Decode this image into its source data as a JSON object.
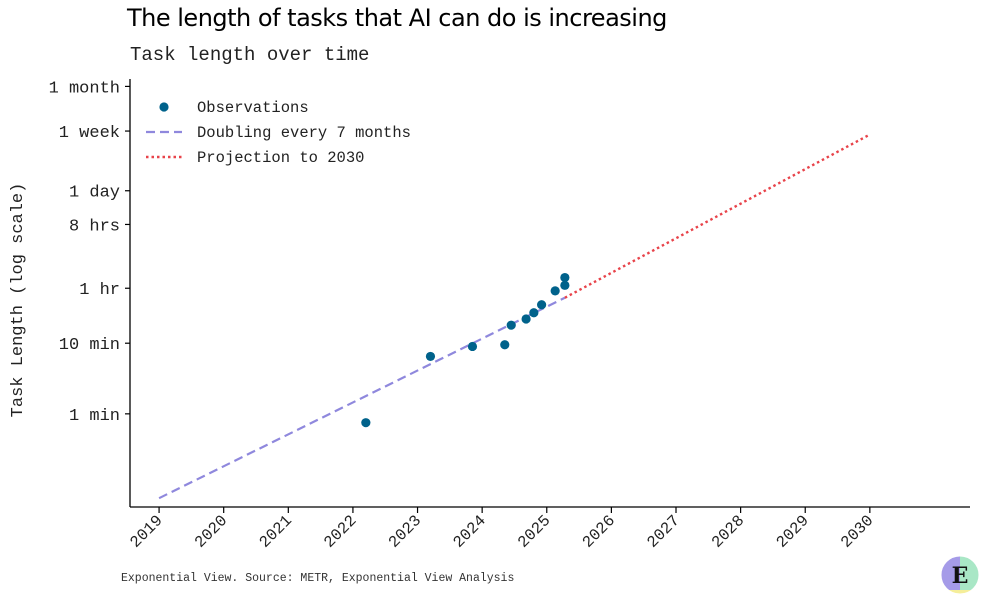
{
  "header": {
    "title": "The length of tasks that AI can do is increasing",
    "subtitle": "Task length over time"
  },
  "footer": {
    "source": "Exponential View. Source: METR, Exponential View Analysis"
  },
  "logo": {
    "letter": "E",
    "name": "exponential-view-logo"
  },
  "colors": {
    "observations": "#00628b",
    "doubling": "#8f88dd",
    "projection": "#e8434a",
    "axis": "#000000"
  },
  "chart_data": {
    "type": "scatter",
    "ylabel": "Task Length (log scale)",
    "y_scale": "log",
    "y_unit": "minutes",
    "x_unit": "year",
    "xlim": [
      2018.55,
      2031.55
    ],
    "ylim_minutes": [
      0.048,
      55000
    ],
    "x_ticks": [
      {
        "value": 2019,
        "label": "2019"
      },
      {
        "value": 2020,
        "label": "2020"
      },
      {
        "value": 2021,
        "label": "2021"
      },
      {
        "value": 2022,
        "label": "2022"
      },
      {
        "value": 2023,
        "label": "2023"
      },
      {
        "value": 2024,
        "label": "2024"
      },
      {
        "value": 2025,
        "label": "2025"
      },
      {
        "value": 2026,
        "label": "2026"
      },
      {
        "value": 2027,
        "label": "2027"
      },
      {
        "value": 2028,
        "label": "2028"
      },
      {
        "value": 2029,
        "label": "2029"
      },
      {
        "value": 2030,
        "label": "2030"
      }
    ],
    "y_ticks": [
      {
        "minutes": 1,
        "label": "1 min"
      },
      {
        "minutes": 10,
        "label": "10 min"
      },
      {
        "minutes": 60,
        "label": "1 hr"
      },
      {
        "minutes": 480,
        "label": "8 hrs"
      },
      {
        "minutes": 1440,
        "label": "1 day"
      },
      {
        "minutes": 10080,
        "label": "1 week"
      },
      {
        "minutes": 43200,
        "label": "1 month"
      }
    ],
    "series": [
      {
        "name": "Observations",
        "kind": "scatter",
        "points": [
          {
            "x": 2022.2,
            "y": 0.75
          },
          {
            "x": 2023.2,
            "y": 6.5
          },
          {
            "x": 2023.85,
            "y": 9.0
          },
          {
            "x": 2024.35,
            "y": 9.5
          },
          {
            "x": 2024.45,
            "y": 18
          },
          {
            "x": 2024.68,
            "y": 22
          },
          {
            "x": 2024.8,
            "y": 27
          },
          {
            "x": 2024.92,
            "y": 35
          },
          {
            "x": 2025.13,
            "y": 55
          },
          {
            "x": 2025.28,
            "y": 66
          },
          {
            "x": 2025.28,
            "y": 85
          }
        ]
      },
      {
        "name": "Doubling every 7 months",
        "kind": "line-dashed",
        "points": [
          {
            "x": 2019.0,
            "y": 0.064
          },
          {
            "x": 2025.28,
            "y": 44
          }
        ]
      },
      {
        "name": "Projection to 2030",
        "kind": "line-dotted",
        "points": [
          {
            "x": 2025.28,
            "y": 44
          },
          {
            "x": 2030.0,
            "y": 9000
          }
        ]
      }
    ],
    "legend": "top-left",
    "grid": false
  }
}
